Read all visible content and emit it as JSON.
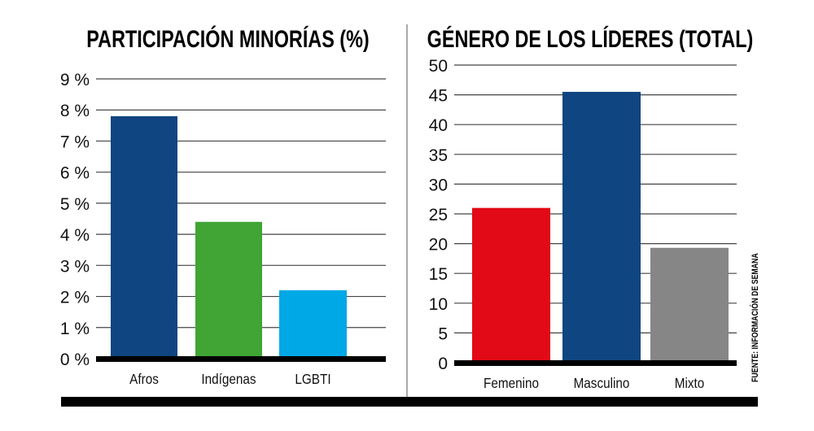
{
  "chart_data": [
    {
      "type": "bar",
      "title": "PARTICIPACIÓN MINORÍAS (%)",
      "categories": [
        "Afros",
        "Indígenas",
        "LGBTI"
      ],
      "values": [
        7.8,
        4.4,
        2.2
      ],
      "colors": [
        "#0f4580",
        "#40a535",
        "#00a8e6"
      ],
      "ylim": [
        0,
        9
      ],
      "yticks": [
        "0 %",
        "1 %",
        "2 %",
        "3 %",
        "4 %",
        "5 %",
        "6 %",
        "7 %",
        "8 %",
        "9 %"
      ],
      "grid": true
    },
    {
      "type": "bar",
      "title": "GÉNERO DE LOS LÍDERES (TOTAL)",
      "categories": [
        "Femenino",
        "Masculino",
        "Mixto"
      ],
      "values": [
        26,
        45.5,
        19.3
      ],
      "colors": [
        "#e20a16",
        "#0f4580",
        "#868686"
      ],
      "ylim": [
        0,
        50
      ],
      "yticks": [
        "0",
        "5",
        "10",
        "15",
        "20",
        "25",
        "30",
        "35",
        "40",
        "45",
        "50"
      ],
      "grid": true
    }
  ],
  "source": "FUENTE: INFORMACIÓN DE SEMANA"
}
